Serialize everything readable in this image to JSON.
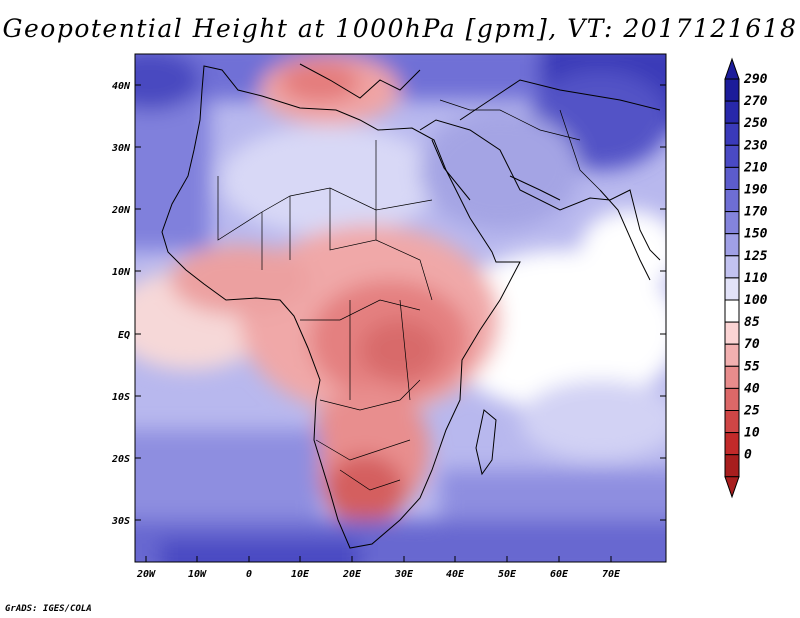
{
  "title": "Geopotential Height at 1000hPa [gpm], VT: 2017121618",
  "credit": "GrADS: IGES/COLA",
  "axes": {
    "lat_labels": [
      "40N",
      "30N",
      "20N",
      "10N",
      "EQ",
      "10S",
      "20S",
      "30S"
    ],
    "lon_labels": [
      "20W",
      "10W",
      "0",
      "10E",
      "20E",
      "30E",
      "40E",
      "50E",
      "60E",
      "70E"
    ]
  },
  "colorbar": {
    "labels": [
      "290",
      "270",
      "250",
      "230",
      "210",
      "190",
      "170",
      "150",
      "125",
      "110",
      "100",
      "85",
      "70",
      "55",
      "40",
      "25",
      "10",
      "0"
    ],
    "colors": [
      "#1c1c9a",
      "#2828aa",
      "#3a3aba",
      "#4a4ac4",
      "#5c5ccc",
      "#6e6ed4",
      "#8484dc",
      "#a0a0e6",
      "#c2c2f0",
      "#e2e2f8",
      "#ffffff",
      "#fbd4d4",
      "#f2b0b0",
      "#e88c8c",
      "#dc6868",
      "#cf4646",
      "#c22a2a",
      "#a81e1e"
    ]
  }
}
